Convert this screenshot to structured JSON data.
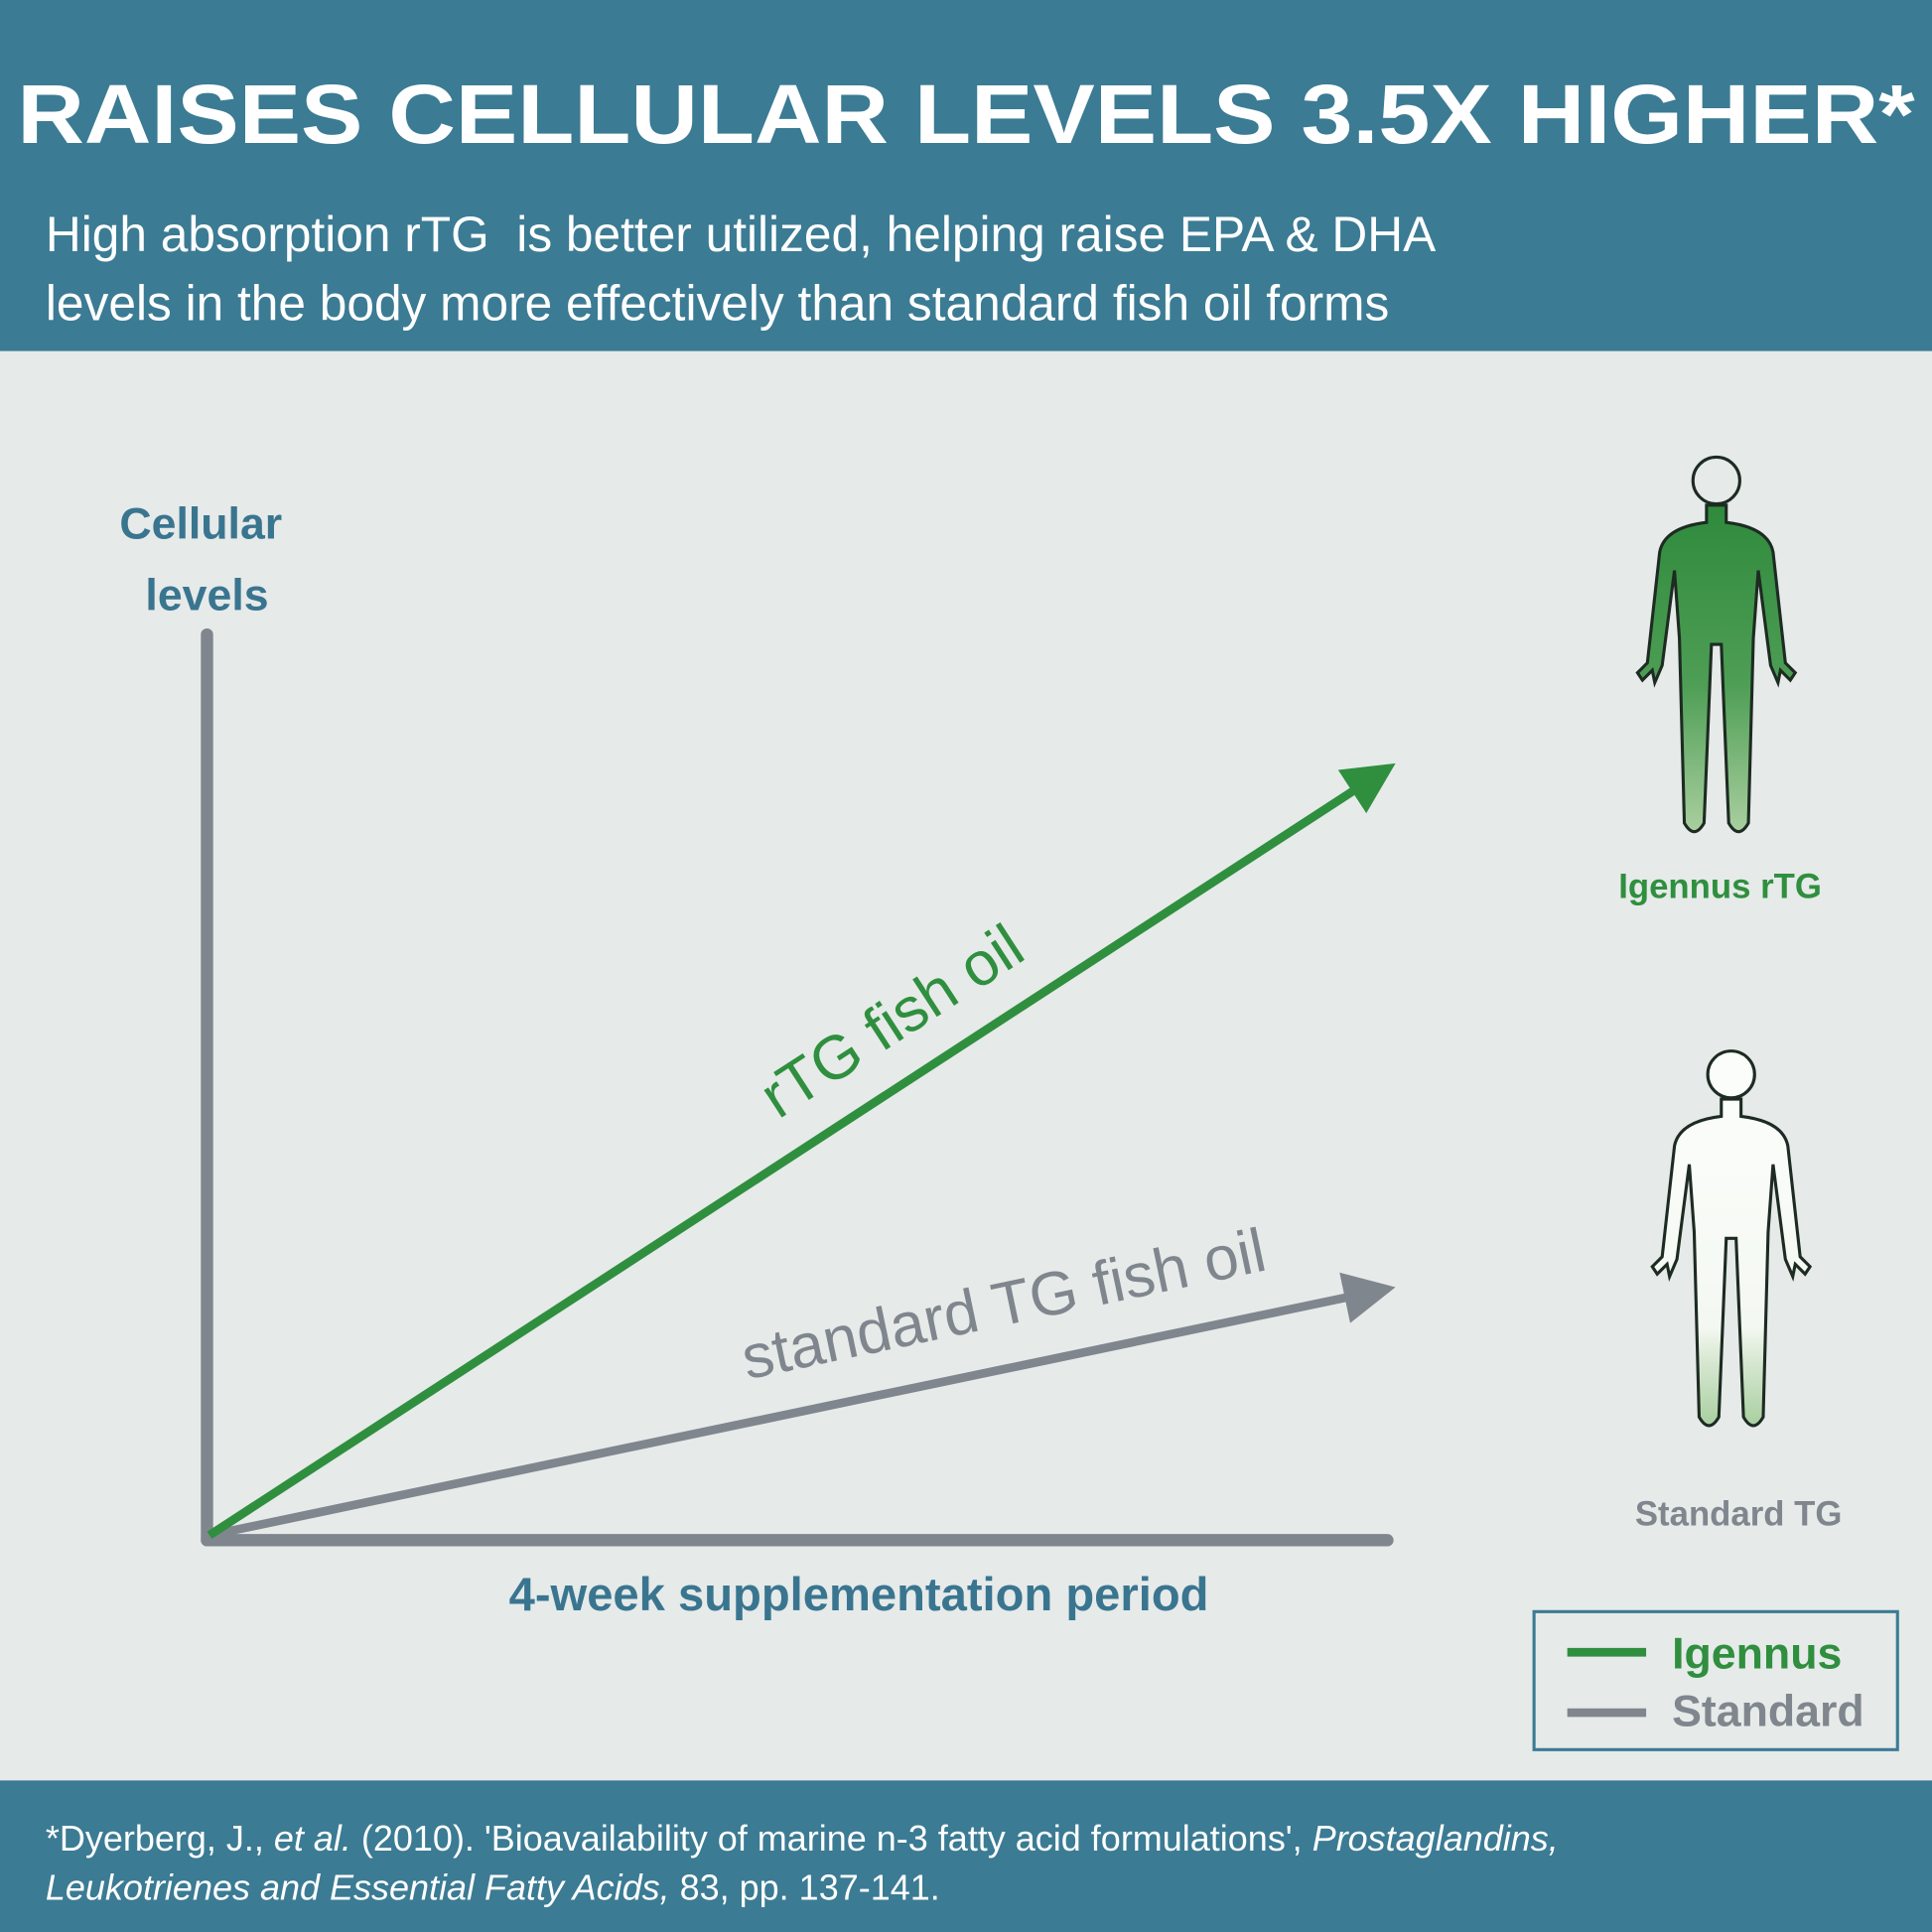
{
  "header": {
    "title": "RAISES CELLULAR LEVELS 3.5X HIGHER*",
    "subtitle_lines": [
      "High absorption rTG  is better utilized, helping raise EPA & DHA",
      "levels in the body more effectively than standard fish oil forms"
    ]
  },
  "diagram": {
    "y_axis_label_lines": [
      "Cellular",
      "levels"
    ],
    "x_axis_label": "4-week supplementation period",
    "lines": [
      {
        "label": "rTG fish oil"
      },
      {
        "label": "standard TG fish oil"
      }
    ]
  },
  "figures": [
    {
      "label": "Igennus rTG"
    },
    {
      "label": "Standard TG"
    }
  ],
  "legend": [
    "Igennus",
    "Standard"
  ],
  "citation": {
    "line1": [
      "*Dyerberg, J., ",
      "et al.",
      " (2010). 'Bioavailability of marine n-3 fatty acid formulations', ",
      "Prostaglandins,"
    ],
    "line2": [
      "Leukotrienes and Essential Fatty Acids,",
      " 83, pp. 137-141."
    ]
  }
}
